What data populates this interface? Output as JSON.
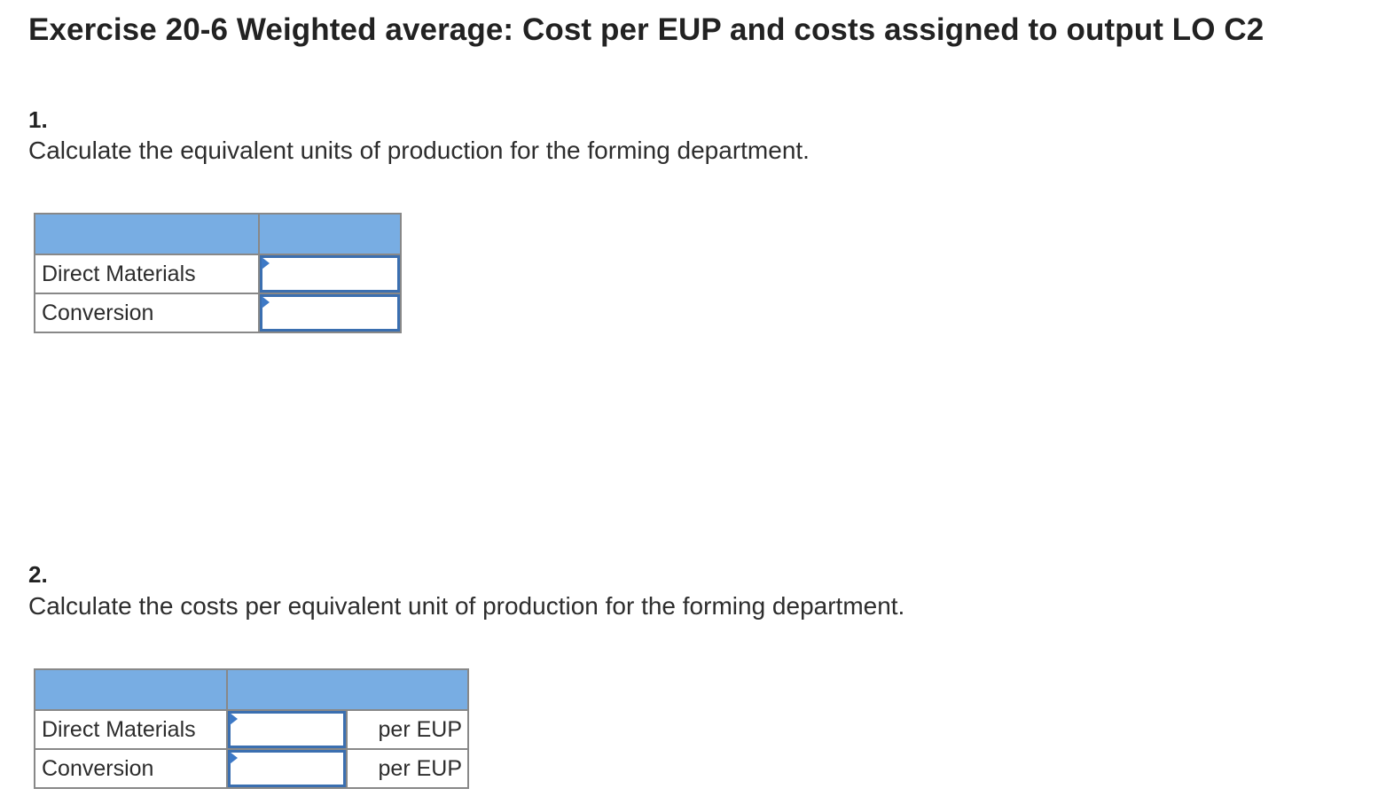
{
  "title": "Exercise 20-6 Weighted average: Cost per EUP and costs assigned to output LO C2",
  "question1": {
    "number": "1.",
    "text": "Calculate the equivalent units of production for the forming department.",
    "rows": [
      {
        "label": "Direct Materials",
        "value": ""
      },
      {
        "label": "Conversion",
        "value": ""
      }
    ]
  },
  "question2": {
    "number": "2.",
    "text": "Calculate the costs per equivalent unit of production for the forming department.",
    "rows": [
      {
        "label": "Direct Materials",
        "value": "",
        "unit": "per EUP"
      },
      {
        "label": "Conversion",
        "value": "",
        "unit": "per EUP"
      }
    ]
  },
  "colors": {
    "header_fill": "#78ade3",
    "input_border": "#3b6fb0",
    "marker": "#3d79c6",
    "grid_border": "#888888"
  },
  "icons": {
    "input_marker": "blue-triangle-marker"
  }
}
